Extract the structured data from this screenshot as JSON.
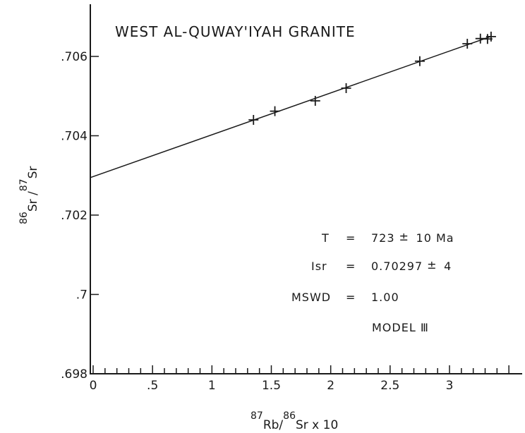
{
  "chart_data": {
    "type": "scatter",
    "title": "WEST AL-QUWAY'IYAH GRANITE",
    "xlabel": {
      "parts": [
        {
          "sup": "87"
        },
        {
          "text": "Rb/"
        },
        {
          "sup": "86"
        },
        {
          "text": "Sr x 10"
        }
      ]
    },
    "ylabel": {
      "parts": [
        {
          "sup": "86"
        },
        {
          "text": "Sr /"
        },
        {
          "sup": "87"
        },
        {
          "text": "Sr"
        }
      ]
    },
    "xlim": [
      0,
      3.6
    ],
    "ylim": [
      0.698,
      0.7072
    ],
    "x_ticks": [
      {
        "value": 0,
        "label": "0"
      },
      {
        "value": 0.5,
        "label": ".5"
      },
      {
        "value": 1,
        "label": "1"
      },
      {
        "value": 1.5,
        "label": "1.5"
      },
      {
        "value": 2,
        "label": "2"
      },
      {
        "value": 2.5,
        "label": "2.5"
      },
      {
        "value": 3,
        "label": "3"
      }
    ],
    "x_minor_step": 0.1,
    "y_ticks": [
      {
        "value": 0.698,
        "label": ".698"
      },
      {
        "value": 0.7,
        "label": ".7"
      },
      {
        "value": 0.702,
        "label": ".702"
      },
      {
        "value": 0.704,
        "label": ".704"
      },
      {
        "value": 0.706,
        "label": ".706"
      }
    ],
    "points": [
      {
        "x": 1.35,
        "y": 0.7044
      },
      {
        "x": 1.53,
        "y": 0.70462
      },
      {
        "x": 1.87,
        "y": 0.70488
      },
      {
        "x": 2.13,
        "y": 0.7052
      },
      {
        "x": 2.75,
        "y": 0.70588
      },
      {
        "x": 3.15,
        "y": 0.70632
      },
      {
        "x": 3.26,
        "y": 0.70645
      },
      {
        "x": 3.32,
        "y": 0.70644
      },
      {
        "x": 3.35,
        "y": 0.7065
      }
    ],
    "fit_line": {
      "intercept": 0.70297,
      "slope": 0.001055,
      "x_range": [
        0,
        3.35
      ]
    },
    "annotations": [
      {
        "lhs": "T",
        "eq": "=",
        "value": "723",
        "pm": "±",
        "err": "10 Ma"
      },
      {
        "lhs": "Isr",
        "eq": "=",
        "value": "0.70297",
        "pm": "±",
        "err": "4"
      },
      {
        "lhs": "MSWD",
        "eq": "=",
        "value": "1.00"
      },
      {
        "lhs": "MODEL Ⅲ"
      }
    ],
    "grid": false
  }
}
